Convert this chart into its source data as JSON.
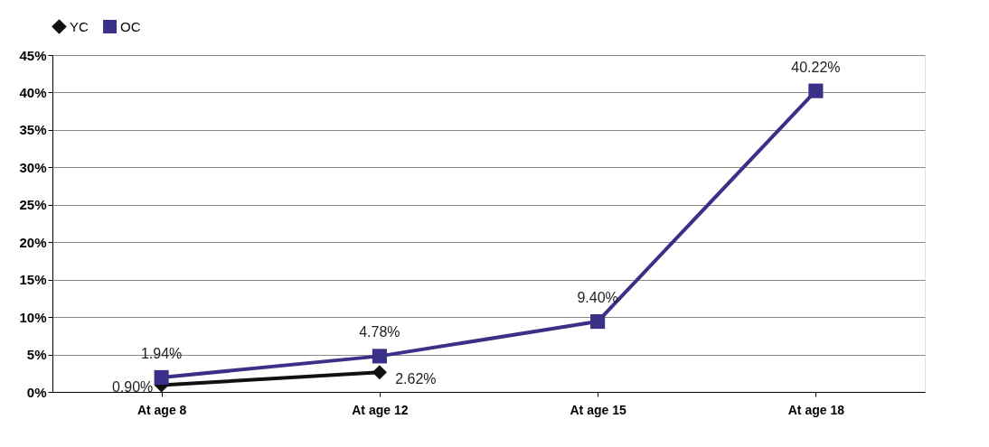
{
  "chart_data": {
    "type": "line",
    "categories": [
      "At age 8",
      "At age 12",
      "At age 15",
      "At age 18"
    ],
    "series": [
      {
        "name": "YC",
        "color": "#111111",
        "marker": "diamond",
        "values": [
          0.9,
          2.62,
          null,
          null
        ],
        "value_labels": [
          "0.90%",
          "2.62%",
          null,
          null
        ]
      },
      {
        "name": "OC",
        "color": "#3b3088",
        "marker": "square",
        "values": [
          1.94,
          4.78,
          9.4,
          40.22
        ],
        "value_labels": [
          "1.94%",
          "4.78%",
          "9.40%",
          "40.22%"
        ]
      }
    ],
    "ylim": [
      0,
      45
    ],
    "yticks": [
      {
        "value": 0,
        "label": "0%"
      },
      {
        "value": 5,
        "label": "5%"
      },
      {
        "value": 10,
        "label": "10%"
      },
      {
        "value": 15,
        "label": "15%"
      },
      {
        "value": 20,
        "label": "20%"
      },
      {
        "value": 25,
        "label": "25%"
      },
      {
        "value": 30,
        "label": "30%"
      },
      {
        "value": 35,
        "label": "35%"
      },
      {
        "value": 40,
        "label": "40%"
      },
      {
        "value": 45,
        "label": "45%"
      }
    ],
    "grid": "y",
    "legend": "top",
    "line_style": "solid"
  }
}
